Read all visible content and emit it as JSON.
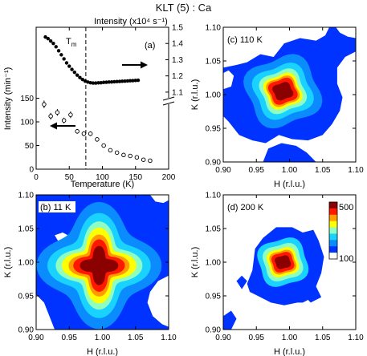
{
  "title": "KLT (5) : Ca",
  "palette": {
    "white": "#ffffff",
    "level_1": "#0033ff",
    "level_2": "#0a8cff",
    "level_3": "#19d2ff",
    "level_4": "#8effc0",
    "level_5": "#ffff00",
    "level_6": "#ff9a00",
    "level_7": "#ff1800",
    "level_8": "#8b0000"
  },
  "chart_data": [
    {
      "id": "a",
      "type": "scatter",
      "panel_label": "(a)",
      "xlabel": "Temperature (K)",
      "ylabel": "Intensity (min⁻¹)",
      "right_axis_label": "Intensity (x10⁴ s⁻¹)",
      "transition_label": "T",
      "transition_subscript": "m",
      "transition_x": 75,
      "xlim": [
        0,
        200
      ],
      "ylim": [
        0,
        300
      ],
      "x_ticks": [
        "0",
        "50",
        "100",
        "150",
        "200"
      ],
      "y_ticks": [
        "0",
        "50",
        "100",
        "150"
      ],
      "right_ylim": [
        1.05,
        1.5
      ],
      "right_ticks": [
        "1.1",
        "1.2",
        "1.3",
        "1.4",
        "1.5"
      ],
      "series": [
        {
          "style": "open-circle-errorbar",
          "axis": "left",
          "x": [
            12,
            22,
            32,
            42,
            52,
            62,
            72,
            82,
            92,
            102,
            112,
            122,
            132,
            142,
            152,
            162,
            172
          ],
          "y": [
            137,
            112,
            120,
            103,
            115,
            80,
            75,
            75,
            63,
            50,
            40,
            35,
            30,
            28,
            25,
            20,
            18
          ],
          "err": [
            8,
            7,
            7,
            6,
            7,
            5,
            5,
            5,
            5,
            4,
            3,
            3,
            3,
            3,
            2,
            2,
            2
          ]
        },
        {
          "style": "filled-dot",
          "axis": "right",
          "x": [
            14,
            18,
            22,
            26,
            30,
            34,
            38,
            42,
            46,
            50,
            54,
            58,
            62,
            66,
            70,
            74,
            78,
            82,
            86,
            90,
            94,
            98,
            102,
            106,
            110,
            114,
            118,
            122,
            126,
            130,
            134,
            138,
            142,
            146,
            150,
            154
          ],
          "y": [
            1.44,
            1.43,
            1.415,
            1.4,
            1.38,
            1.355,
            1.33,
            1.305,
            1.28,
            1.26,
            1.24,
            1.222,
            1.205,
            1.19,
            1.178,
            1.168,
            1.162,
            1.158,
            1.156,
            1.156,
            1.157,
            1.158,
            1.16,
            1.161,
            1.162,
            1.163,
            1.164,
            1.165,
            1.166,
            1.167,
            1.168,
            1.169,
            1.17,
            1.171,
            1.172,
            1.173
          ]
        }
      ]
    },
    {
      "id": "c",
      "type": "heatmap",
      "panel_label": "(c) 110 K",
      "xlabel": "H (r.l.u.)",
      "ylabel": "K (r.l.u.)",
      "xlim": [
        0.9,
        1.1
      ],
      "ylim": [
        0.9,
        1.1
      ],
      "x_ticks": [
        "0.90",
        "0.95",
        "1.00",
        "1.05",
        "1.10"
      ],
      "y_ticks": [
        "0.90",
        "0.95",
        "1.00",
        "1.05",
        "1.10"
      ],
      "peak_h": 0.99,
      "peak_k": 1.005
    },
    {
      "id": "b",
      "type": "heatmap",
      "panel_label": "(b) 11 K",
      "xlabel": "H (r.l.u.)",
      "ylabel": "K (r.l.u.)",
      "xlim": [
        0.9,
        1.1
      ],
      "ylim": [
        0.9,
        1.1
      ],
      "x_ticks": [
        "0.90",
        "0.95",
        "1.00",
        "1.05",
        "1.10"
      ],
      "y_ticks": [
        "0.90",
        "0.95",
        "1.00",
        "1.05",
        "1.10"
      ],
      "peak_h": 0.995,
      "peak_k": 0.995
    },
    {
      "id": "d",
      "type": "heatmap",
      "panel_label": "(d)  200 K",
      "xlabel": "H (r.l.u.)",
      "ylabel": "K (r.l.u.)",
      "xlim": [
        0.9,
        1.1
      ],
      "ylim": [
        0.9,
        1.1
      ],
      "x_ticks": [
        "0.90",
        "0.95",
        "1.00",
        "1.05",
        "1.10"
      ],
      "y_ticks": [
        "0.90",
        "0.95",
        "1.00",
        "1.05",
        "1.10"
      ],
      "peak_h": 0.99,
      "peak_k": 1.0,
      "colorbar": {
        "max_label": "500",
        "min_label": "100",
        "range": [
          100,
          500
        ]
      }
    }
  ]
}
